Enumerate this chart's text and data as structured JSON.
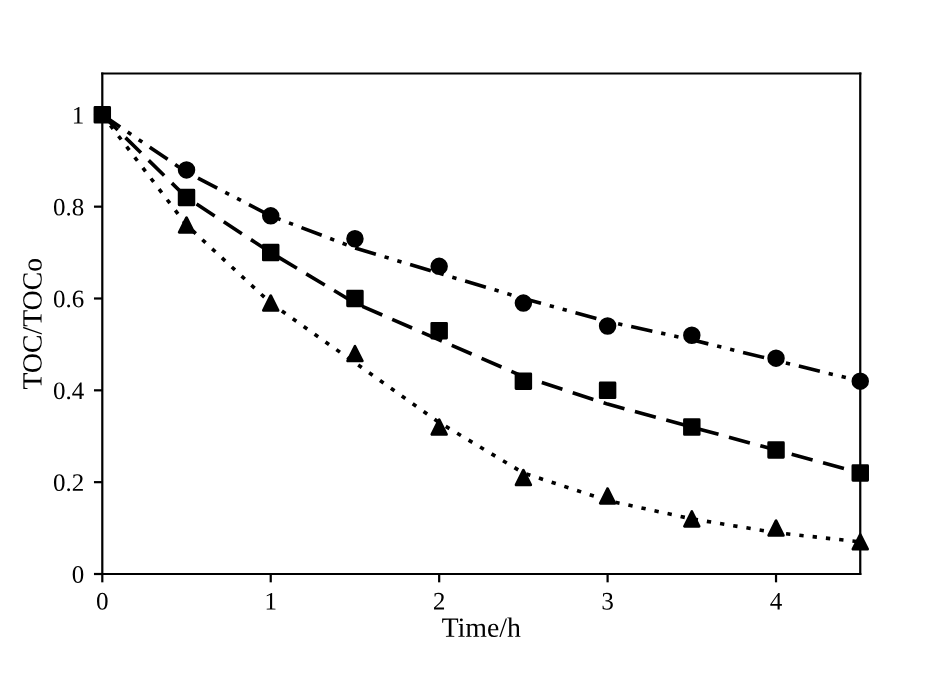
{
  "chart_data": {
    "type": "scatter",
    "xlabel": "Time/h",
    "ylabel": "TOC/TOCo",
    "x": [
      0,
      0.5,
      1,
      1.5,
      2,
      2.5,
      3,
      3.5,
      4,
      4.5
    ],
    "series": [
      {
        "color": "#000000",
        "marker": "circle",
        "values": [
          null,
          0.88,
          0.78,
          0.73,
          0.67,
          0.59,
          0.54,
          0.52,
          0.47,
          0.42
        ]
      },
      {
        "color": "#000000",
        "marker": "square",
        "values": [
          1,
          0.82,
          0.7,
          0.6,
          0.53,
          0.42,
          0.4,
          0.32,
          0.27,
          0.22
        ]
      },
      {
        "color": "#000000",
        "marker": "triangle",
        "values": [
          null,
          0.76,
          0.59,
          0.48,
          0.32,
          0.21,
          0.17,
          0.12,
          0.1,
          0.07
        ]
      },
      {
        "type": "line",
        "color": "#000000",
        "line_style": "dashdot",
        "marker": "none",
        "values": [
          1,
          0.875,
          0.78,
          0.71,
          0.655,
          0.6,
          0.55,
          0.51,
          0.465,
          0.42
        ]
      },
      {
        "type": "line",
        "color": "#000000",
        "line_style": "dashed",
        "marker": "none",
        "values": [
          1,
          0.82,
          0.7,
          0.59,
          0.51,
          0.43,
          0.37,
          0.32,
          0.27,
          0.22
        ]
      },
      {
        "type": "line",
        "color": "#000000",
        "line_style": "dotted",
        "marker": "none",
        "values": [
          1,
          0.76,
          0.59,
          0.46,
          0.33,
          0.22,
          0.16,
          0.12,
          0.09,
          0.07
        ]
      }
    ],
    "xlim": [
      0,
      4.5
    ],
    "ylim": [
      0,
      1.09
    ],
    "xticks": [
      0,
      1,
      2,
      3,
      4
    ],
    "yticks": [
      0,
      0.2,
      0.4,
      0.6,
      0.8,
      1
    ],
    "grid": false,
    "legend": false
  }
}
